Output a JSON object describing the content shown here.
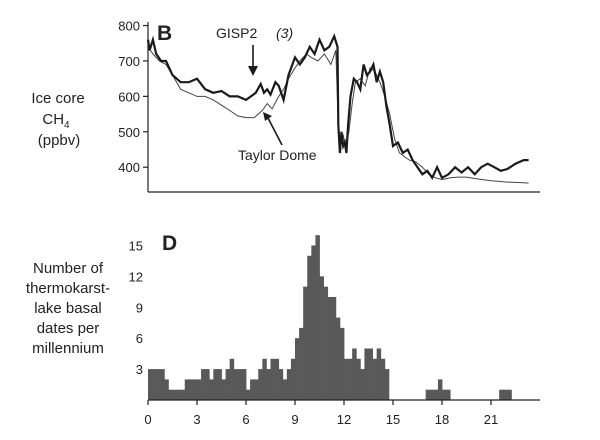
{
  "chart_data": [
    {
      "type": "line",
      "panel": "B",
      "ylabel_lines": [
        "Ice core",
        "CH",
        "(ppbv)"
      ],
      "ylabel_sub": "4",
      "yticks": [
        400,
        500,
        600,
        700,
        800
      ],
      "ylim": [
        330,
        810
      ],
      "xlim": [
        0,
        24
      ],
      "grid": false,
      "annotations": [
        {
          "text": "GISP2",
          "italic": false
        },
        {
          "text": "(3)",
          "italic": true
        },
        {
          "text": "Taylor Dome",
          "italic": false
        }
      ],
      "series": [
        {
          "name": "GISP2",
          "x": [
            0,
            0.1,
            0.3,
            0.5,
            0.8,
            1.1,
            1.5,
            2.0,
            2.5,
            3.0,
            3.5,
            4.0,
            4.5,
            5.0,
            5.5,
            6.0,
            6.3,
            6.6,
            6.9,
            7.1,
            7.3,
            7.5,
            7.8,
            8.0,
            8.3,
            8.6,
            9.0,
            9.3,
            9.6,
            9.9,
            10.2,
            10.5,
            10.8,
            11.1,
            11.4,
            11.6,
            11.65,
            11.75,
            11.85,
            11.95,
            12.05,
            12.15,
            12.25,
            12.4,
            12.6,
            12.8,
            13.0,
            13.2,
            13.4,
            13.6,
            13.8,
            14.0,
            14.2,
            14.4,
            14.6,
            14.8,
            15.0,
            15.3,
            15.6,
            15.9,
            16.2,
            16.5,
            16.8,
            17.1,
            17.4,
            17.7,
            18.0,
            18.4,
            18.8,
            19.2,
            19.6,
            20.0,
            20.4,
            20.8,
            21.2,
            21.6,
            22.0,
            22.5,
            23.0,
            23.3
          ],
          "values": [
            760,
            730,
            760,
            720,
            700,
            700,
            660,
            640,
            640,
            650,
            620,
            610,
            615,
            600,
            600,
            590,
            600,
            610,
            635,
            610,
            620,
            605,
            640,
            630,
            590,
            660,
            710,
            690,
            710,
            740,
            720,
            760,
            730,
            740,
            770,
            740,
            520,
            440,
            500,
            460,
            470,
            440,
            520,
            600,
            650,
            640,
            620,
            690,
            660,
            670,
            690,
            640,
            670,
            640,
            570,
            520,
            460,
            470,
            440,
            450,
            420,
            400,
            380,
            390,
            370,
            400,
            370,
            380,
            400,
            385,
            400,
            380,
            400,
            410,
            400,
            390,
            395,
            410,
            420,
            420
          ]
        },
        {
          "name": "Taylor Dome",
          "x": [
            0,
            0.3,
            0.7,
            1.1,
            1.5,
            2.0,
            2.5,
            3.0,
            3.5,
            4.0,
            4.5,
            5.0,
            5.5,
            6.0,
            6.5,
            7.0,
            7.3,
            7.6,
            8.0,
            8.3,
            8.6,
            9.0,
            9.3,
            9.7,
            10.0,
            10.4,
            10.8,
            11.2,
            11.5,
            11.65,
            11.8,
            11.95,
            12.1,
            12.3,
            12.5,
            12.7,
            13.0,
            13.3,
            13.6,
            13.9,
            14.2,
            14.5,
            14.8,
            15.1,
            15.4,
            15.7,
            16.0,
            16.4,
            16.8,
            17.2,
            17.6,
            18.0,
            18.5,
            19.0,
            19.5,
            20.0,
            20.5,
            21.0,
            21.5,
            22.0,
            22.5,
            23.0,
            23.3
          ],
          "values": [
            740,
            720,
            700,
            690,
            660,
            620,
            610,
            600,
            600,
            590,
            575,
            560,
            545,
            540,
            540,
            560,
            580,
            565,
            600,
            620,
            650,
            680,
            700,
            720,
            710,
            700,
            720,
            690,
            730,
            520,
            470,
            490,
            460,
            500,
            580,
            640,
            650,
            630,
            680,
            670,
            640,
            600,
            550,
            480,
            440,
            430,
            420,
            415,
            400,
            380,
            370,
            365,
            370,
            372,
            372,
            368,
            365,
            362,
            360,
            358,
            357,
            356,
            355
          ]
        }
      ]
    },
    {
      "type": "bar",
      "panel": "D",
      "ylabel_lines": [
        "Number of",
        "thermokarst-",
        "lake basal",
        "dates per",
        "millennium"
      ],
      "yticks": [
        3,
        6,
        9,
        12,
        15
      ],
      "xticks": [
        0,
        3,
        6,
        9,
        12,
        15,
        18,
        21
      ],
      "ylim": [
        0,
        16.5
      ],
      "xlim": [
        0,
        24
      ],
      "grid": false,
      "bin_width": 0.25,
      "x": [
        0,
        0.25,
        0.5,
        0.75,
        1,
        1.25,
        1.5,
        1.75,
        2,
        2.25,
        2.5,
        2.75,
        3,
        3.25,
        3.5,
        3.75,
        4,
        4.25,
        4.5,
        4.75,
        5,
        5.25,
        5.5,
        5.75,
        6,
        6.25,
        6.5,
        6.75,
        7,
        7.25,
        7.5,
        7.75,
        8,
        8.25,
        8.5,
        8.75,
        9,
        9.25,
        9.5,
        9.75,
        10,
        10.25,
        10.5,
        10.75,
        11,
        11.25,
        11.5,
        11.75,
        12,
        12.25,
        12.5,
        12.75,
        13,
        13.25,
        13.5,
        13.75,
        14,
        14.25,
        14.5,
        17,
        17.25,
        17.5,
        17.75,
        18,
        18.25,
        21.5,
        21.75,
        22
      ],
      "values": [
        3,
        3,
        3,
        3,
        2,
        1,
        1,
        1,
        1,
        2,
        2,
        2,
        2,
        3,
        3,
        2,
        3,
        3,
        2,
        3,
        4,
        3,
        3,
        3,
        1,
        2,
        2,
        3,
        4,
        3,
        4,
        4,
        3,
        2,
        3,
        4,
        6,
        7,
        11,
        14,
        15,
        16,
        12,
        11,
        10,
        10,
        8,
        7,
        4,
        4,
        5,
        4,
        3,
        5,
        5,
        4,
        5,
        4,
        3,
        1,
        1,
        1,
        2,
        1,
        1,
        1,
        1,
        1
      ]
    }
  ]
}
